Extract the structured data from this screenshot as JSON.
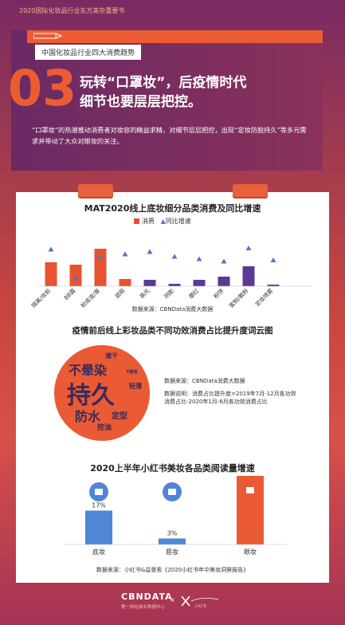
{
  "topbar": {
    "text": "2020国际化妆品行业东方美杂重要书"
  },
  "hero": {
    "tag": "中国化妆品行业四大消费趋势",
    "number": "03",
    "headline_line1": "玩转“口罩妆”，后疫情时代",
    "headline_line2": "细节也要层层把控。",
    "paragraph": "“口罩妆”的热潮推动消费者对妆容的精益求精，对细节层层把控，出现“定妆防脱持久”等多元需求并带动了大众对眼妆的关注。"
  },
  "chart1": {
    "title": "MAT2020线上底妆细分品类消费及同比增速",
    "legend_bar": "消费",
    "legend_tri": "同比增速",
    "source": "数据来源：CBNData消费大数据"
  },
  "chart_data": [
    {
      "type": "bar",
      "title": "MAT2020线上底妆细分品类消费及同比增速",
      "categories": [
        "隔离/妆前",
        "BB霜",
        "粉底液/膏",
        "遮瑕",
        "高光",
        "阴影",
        "腮红",
        "粉饼",
        "蜜粉/散粉",
        "定妆喷雾"
      ],
      "series": [
        {
          "name": "消费",
          "values": [
            30,
            27,
            47,
            9,
            8,
            3,
            8,
            12,
            25,
            2
          ]
        },
        {
          "name": "同比增速",
          "values": [
            31,
            7,
            25,
            27,
            29,
            25,
            23,
            21,
            32,
            22
          ]
        }
      ],
      "colors": {
        "消费": "#e8532f",
        "同比增速": "#4f78c4",
        "bar_alt": "#5b3a93"
      }
    },
    {
      "type": "bar",
      "title": "2020上半年小红书美妆各品类阅读量增速",
      "categories": [
        "底妆",
        "唇妆",
        "眼妆"
      ],
      "values": [
        17,
        3,
        36
      ],
      "labels": [
        "17%",
        "3%",
        "36%"
      ],
      "colors": [
        "#4f86d6",
        "#4f86d6",
        "#ea5a34"
      ]
    }
  ],
  "cloud": {
    "title": "疫情前后线上彩妆品类不同功效消费占比提升度词云图",
    "words": {
      "w1": "速干",
      "w2": "不晕染",
      "w3": "不脱妆",
      "w4": "持久",
      "w5": "轻薄",
      "w6": "防水",
      "w7": "定型",
      "w8": "控油"
    },
    "info1": "数据来源：CBNData消费大数据",
    "info2": "数据说明：消费占比提升度=2019年7月-12月各功效",
    "info3": "消费占比-2020年1月-6月各功效消费占比"
  },
  "chart3": {
    "title": "2020上半年小红书美妆各品类阅读量增速",
    "source": "数据来源：小红书&益普索《2020小红书年中美妆洞察报告》"
  },
  "footer": {
    "logo": "CBNDATA",
    "sub": "第一财经商业数据中心",
    "x": "×",
    "sub2": "小红书"
  }
}
